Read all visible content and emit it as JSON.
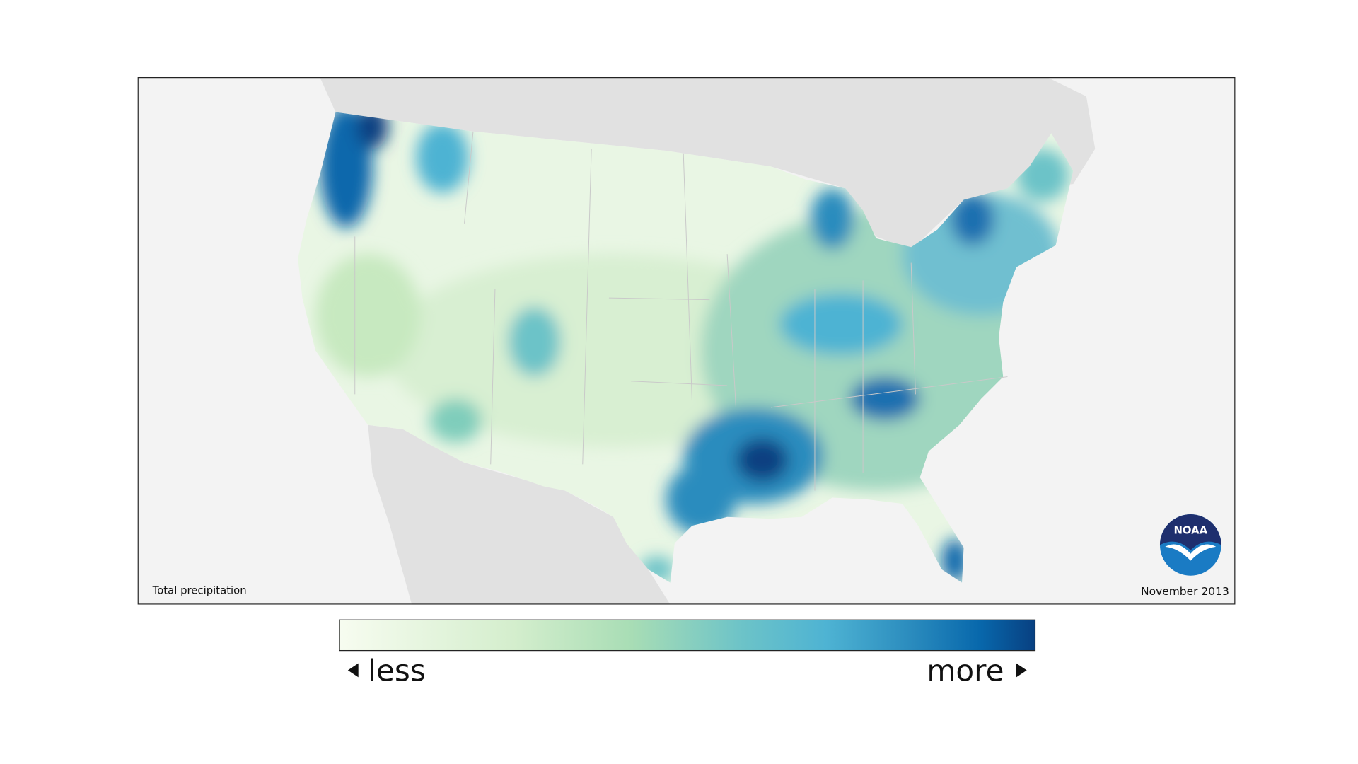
{
  "map": {
    "caption": "Total precipitation",
    "date": "November 2013"
  },
  "legend": {
    "low_label": "less",
    "high_label": "more"
  },
  "logo": {
    "text": "NOAA"
  }
}
